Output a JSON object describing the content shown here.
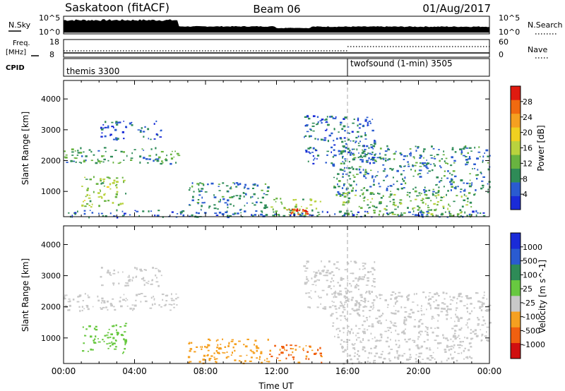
{
  "header": {
    "station": "Saskatoon (fitACF)",
    "beam": "Beam 06",
    "date": "01/Aug/2017"
  },
  "nsky_panel": {
    "left_label": "N.Sky",
    "right_label": "N.Search",
    "ticks": [
      "10^5",
      "10^0"
    ]
  },
  "freq_panel": {
    "left_label_1": "Freq.",
    "left_label_2": "[MHz]",
    "left_ticks": [
      "18",
      "8"
    ],
    "right_label": "Nave",
    "right_ticks": [
      "60",
      "0"
    ]
  },
  "cpid_panel": {
    "label": "CPID",
    "modes": [
      {
        "name": "themis 3300",
        "start_hour": 0
      },
      {
        "name": "twofsound (1-min) 3505",
        "start_hour": 16
      }
    ]
  },
  "colors": {
    "power": [
      "#1a2bd8",
      "#2a5bd0",
      "#2e8b57",
      "#68b340",
      "#b9d23e",
      "#f0d020",
      "#f5a020",
      "#f06a10",
      "#e01a10"
    ],
    "velocity": [
      "#d01010",
      "#f06010",
      "#f5a020",
      "#c8c8c8",
      "#68c840",
      "#2e8b57",
      "#2a5bd0",
      "#1a2bd8"
    ]
  },
  "chart_data": [
    {
      "type": "heatmap",
      "name": "power",
      "xlabel": "",
      "ylabel": "Slant Range [km]",
      "xlim": [
        0,
        24
      ],
      "ylim": [
        180,
        4600
      ],
      "yticks": [
        "1000",
        "2000",
        "3000",
        "4000"
      ],
      "colorbar": {
        "label": "Power [dB]",
        "ticks": [
          "4",
          "8",
          "12",
          "16",
          "20",
          "24",
          "28"
        ],
        "range": [
          0,
          32
        ]
      },
      "regions": [
        {
          "x": [
            0.0,
            6.5
          ],
          "y": [
            1900,
            2450
          ],
          "value": 10
        },
        {
          "x": [
            2.0,
            5.5
          ],
          "y": [
            2700,
            3300
          ],
          "value": 5
        },
        {
          "x": [
            1.0,
            3.5
          ],
          "y": [
            500,
            1500
          ],
          "value": 14
        },
        {
          "x": [
            7.0,
            11.5
          ],
          "y": [
            400,
            1300
          ],
          "value": 8
        },
        {
          "x": [
            11.5,
            14.5
          ],
          "y": [
            200,
            800
          ],
          "value": 14
        },
        {
          "x": [
            12.5,
            13.8
          ],
          "y": [
            280,
            450
          ],
          "value": 28
        },
        {
          "x": [
            13.5,
            17.5
          ],
          "y": [
            1900,
            3500
          ],
          "value": 6
        },
        {
          "x": [
            15.0,
            24.0
          ],
          "y": [
            900,
            2500
          ],
          "value": 8
        },
        {
          "x": [
            15.5,
            23.0
          ],
          "y": [
            200,
            1000
          ],
          "value": 12
        },
        {
          "x": [
            0.0,
            24.0
          ],
          "y": [
            180,
            420
          ],
          "value": 6
        }
      ]
    },
    {
      "type": "heatmap",
      "name": "velocity",
      "xlabel": "Time UT",
      "ylabel": "Slant Range [km]",
      "xlim": [
        0,
        24
      ],
      "ylim": [
        180,
        4600
      ],
      "xticks": [
        "00:00",
        "04:00",
        "08:00",
        "12:00",
        "16:00",
        "20:00",
        "00:00"
      ],
      "yticks": [
        "1000",
        "2000",
        "3000",
        "4000"
      ],
      "colorbar": {
        "label": "Velocity [m s^-1]",
        "ticks": [
          "-1000",
          "-500",
          "-100",
          "-25",
          "25",
          "100",
          "500",
          "1000"
        ]
      },
      "regions": [
        {
          "x": [
            0.0,
            6.5
          ],
          "y": [
            1900,
            2450
          ],
          "value": 0
        },
        {
          "x": [
            2.0,
            5.5
          ],
          "y": [
            2700,
            3300
          ],
          "value": 0
        },
        {
          "x": [
            1.0,
            3.5
          ],
          "y": [
            500,
            1500
          ],
          "value": 80
        },
        {
          "x": [
            7.0,
            11.5
          ],
          "y": [
            200,
            1000
          ],
          "value": -60
        },
        {
          "x": [
            11.5,
            14.5
          ],
          "y": [
            200,
            800
          ],
          "value": -100
        },
        {
          "x": [
            13.5,
            17.5
          ],
          "y": [
            1900,
            3500
          ],
          "value": 0
        },
        {
          "x": [
            15.0,
            24.0
          ],
          "y": [
            900,
            2500
          ],
          "value": 0
        },
        {
          "x": [
            15.5,
            23.0
          ],
          "y": [
            200,
            1000
          ],
          "value": 0
        }
      ]
    }
  ]
}
